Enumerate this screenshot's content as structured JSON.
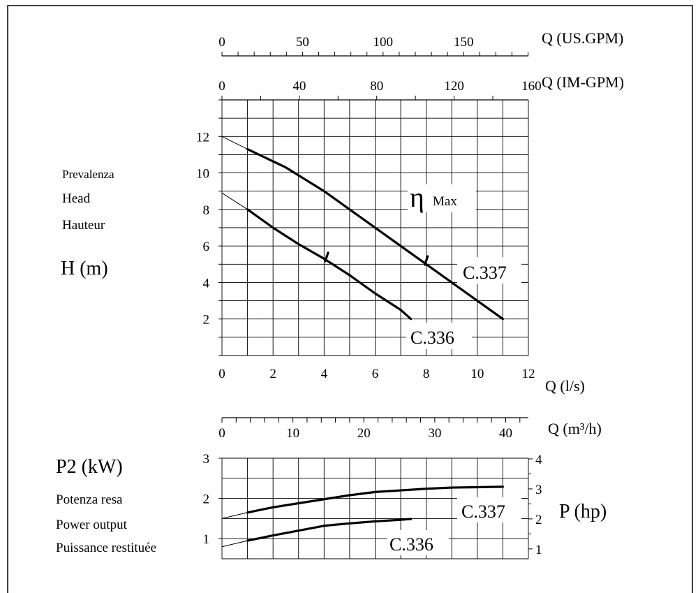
{
  "chart_data": [
    {
      "type": "line",
      "name_hint": "head-curve",
      "ylabel_block": [
        "Prevalenza",
        "Head",
        "Hauteur",
        "H (m)"
      ],
      "xlabel": "Q (l/s)",
      "x_ticks": [
        0,
        2,
        4,
        6,
        8,
        10,
        12
      ],
      "y_ticks": [
        2,
        4,
        6,
        8,
        10,
        12
      ],
      "xlim": [
        0,
        12
      ],
      "ylim": [
        0,
        14
      ],
      "grid": true,
      "secondary_x_axes": [
        {
          "label": "Q (US.GPM)",
          "ticks": [
            0,
            50,
            100,
            150
          ],
          "units_per_ls": 15.85
        },
        {
          "label": "Q (IM-GPM)",
          "ticks": [
            0,
            40,
            80,
            120,
            160
          ],
          "units_per_ls": 13.2
        }
      ],
      "annotation": {
        "symbol": "η",
        "sub": "Max"
      },
      "series": [
        {
          "name": "C.337",
          "x": [
            1,
            2.5,
            4,
            5.5,
            7,
            8,
            9,
            10,
            11
          ],
          "y": [
            11.3,
            10.3,
            9.0,
            7.5,
            6.0,
            5.0,
            4.0,
            3.0,
            2.0
          ],
          "shutoff_head": 12,
          "eta_max_at": [
            8,
            5.2
          ]
        },
        {
          "name": "C.336",
          "x": [
            1,
            2,
            3,
            4,
            5,
            6,
            7,
            7.4
          ],
          "y": [
            8.0,
            7.0,
            6.1,
            5.3,
            4.4,
            3.4,
            2.5,
            2.0
          ],
          "shutoff_head": 8.9,
          "eta_max_at": [
            4.1,
            5.4
          ]
        }
      ]
    },
    {
      "type": "line",
      "name_hint": "power-curve",
      "ylabel": "P2 (kW)",
      "ylabel_block": [
        "Potenza resa",
        "Power output",
        "Puissance restituée"
      ],
      "y2label": "P (hp)",
      "xlabel": "Q (m³/h)",
      "x_ticks": [
        0,
        10,
        20,
        30,
        40
      ],
      "y_ticks": [
        1,
        2,
        3
      ],
      "y2_ticks": [
        1,
        2,
        3,
        4
      ],
      "xlim_ls": [
        0,
        12
      ],
      "ylim": [
        0.5,
        3
      ],
      "grid": true,
      "series": [
        {
          "name": "C.337",
          "x": [
            1,
            2,
            3,
            4,
            5,
            6,
            7,
            8,
            9,
            10,
            11
          ],
          "y": [
            1.65,
            1.78,
            1.88,
            1.98,
            2.08,
            2.16,
            2.2,
            2.24,
            2.27,
            2.28,
            2.29
          ],
          "start_at_zero": 1.5
        },
        {
          "name": "C.336",
          "x": [
            1,
            2,
            3,
            4,
            5,
            6,
            7,
            7.4
          ],
          "y": [
            0.95,
            1.08,
            1.2,
            1.32,
            1.38,
            1.43,
            1.47,
            1.49
          ],
          "start_at_zero": 0.8
        }
      ]
    }
  ]
}
